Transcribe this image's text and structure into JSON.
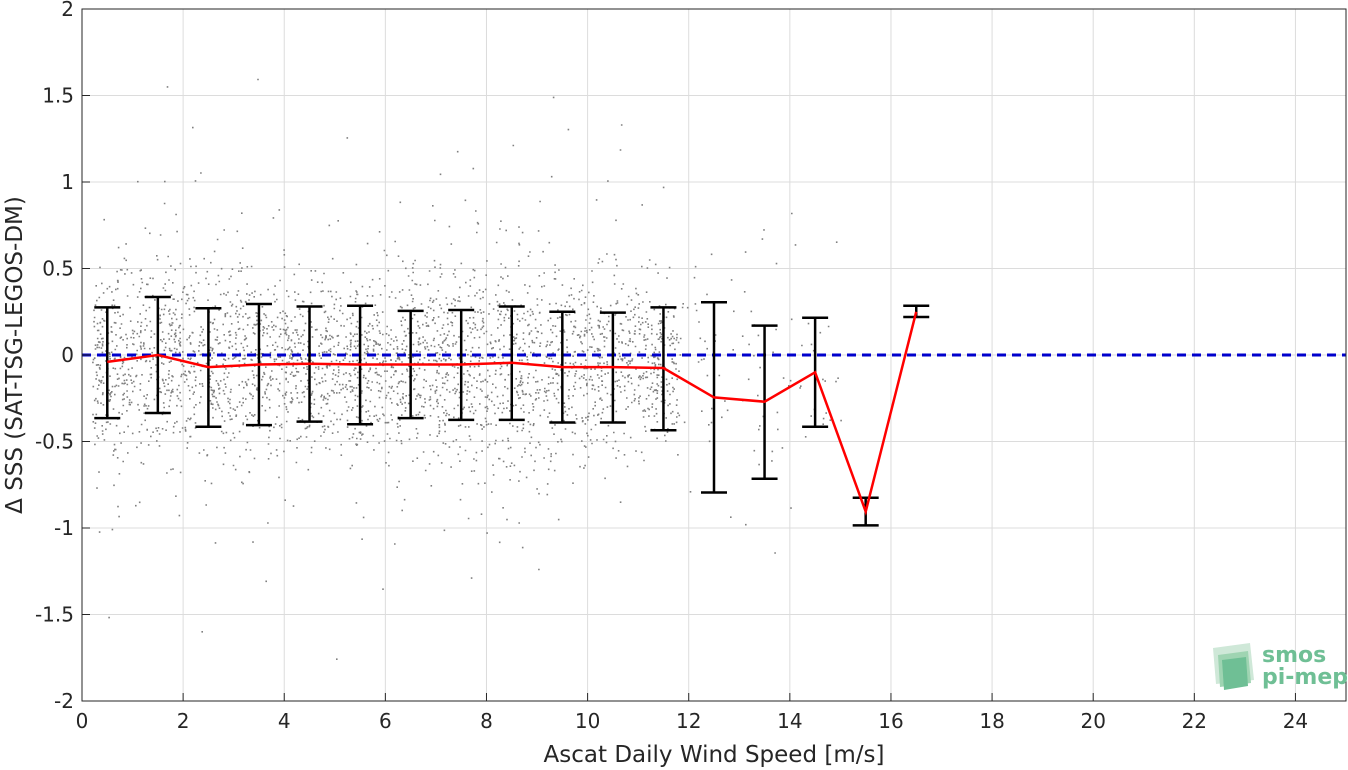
{
  "chart_data": {
    "type": "scatter",
    "xlabel": "Ascat Daily Wind Speed [m/s]",
    "ylabel": "Δ SSS (SAT-TSG-LEGOS-DM)",
    "xlim": [
      0,
      25
    ],
    "ylim": [
      -2,
      2
    ],
    "xticks": [
      0,
      2,
      4,
      6,
      8,
      10,
      12,
      14,
      16,
      18,
      20,
      22,
      24
    ],
    "xtick_labels": [
      "0",
      "2",
      "4",
      "6",
      "8",
      "10",
      "12",
      "14",
      "16",
      "18",
      "20",
      "22",
      "24"
    ],
    "yticks": [
      2,
      1.5,
      1,
      0.5,
      0,
      -0.5,
      -1,
      -1.5,
      -2
    ],
    "ytick_labels": [
      "2",
      "1.5",
      "1",
      "0.5",
      "0",
      "-0.5",
      "-1",
      "-1.5",
      "-2"
    ],
    "grid": true,
    "scatter_color": "#808080",
    "zero_line": {
      "y": 0,
      "style": "dashed",
      "color": "#0000cc"
    },
    "series": [
      {
        "type": "line",
        "color": "#ff0000",
        "x": [
          0.5,
          1.5,
          2.5,
          3.5,
          4.5,
          5.5,
          6.5,
          7.5,
          8.5,
          9.5,
          10.5,
          11.5,
          12.5,
          13.5,
          14.5,
          15.5,
          16.5
        ],
        "values": [
          -0.04,
          0.0,
          -0.07,
          -0.055,
          -0.05,
          -0.055,
          -0.055,
          -0.055,
          -0.045,
          -0.07,
          -0.07,
          -0.075,
          -0.245,
          -0.27,
          -0.1,
          -0.905,
          0.25
        ]
      },
      {
        "type": "errorbar",
        "color": "#000000",
        "x": [
          0.5,
          1.5,
          2.5,
          3.5,
          4.5,
          5.5,
          6.5,
          7.5,
          8.5,
          9.5,
          10.5,
          11.5,
          12.5,
          13.5,
          14.5,
          15.5,
          16.5
        ],
        "upper": [
          0.275,
          0.335,
          0.27,
          0.295,
          0.28,
          0.285,
          0.255,
          0.26,
          0.28,
          0.25,
          0.245,
          0.275,
          0.305,
          0.17,
          0.215,
          -0.825,
          0.285
        ],
        "lower": [
          -0.365,
          -0.335,
          -0.415,
          -0.405,
          -0.385,
          -0.4,
          -0.365,
          -0.375,
          -0.375,
          -0.39,
          -0.39,
          -0.435,
          -0.795,
          -0.715,
          -0.415,
          -0.985,
          0.22
        ]
      }
    ]
  },
  "logo": {
    "line1": "smos",
    "line2": "pi-mep"
  }
}
